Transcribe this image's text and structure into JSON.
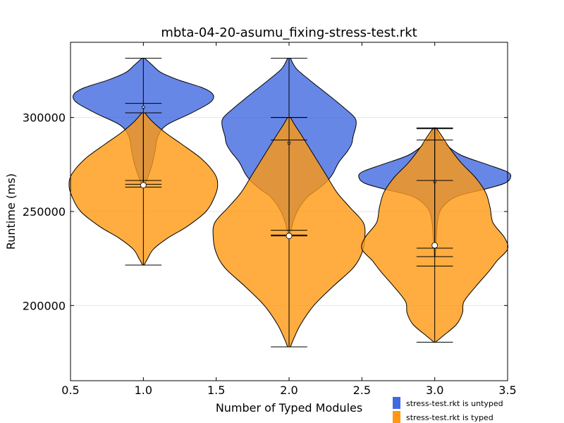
{
  "chart_data": {
    "type": "violin",
    "title": "mbta-04-20-asumu_fixing-stress-test.rkt",
    "xlabel": "Number of Typed Modules",
    "ylabel": "Runtime (ms)",
    "xlim": [
      0.5,
      3.5
    ],
    "ylim": [
      160000,
      340000
    ],
    "xticks": [
      0.5,
      1.0,
      1.5,
      2.0,
      2.5,
      3.0,
      3.5
    ],
    "xtick_labels": [
      "0.5",
      "1.0",
      "1.5",
      "2.0",
      "2.5",
      "3.0",
      "3.5"
    ],
    "yticks": [
      200000,
      250000,
      300000
    ],
    "ytick_labels": [
      "200000",
      "250000",
      "300000"
    ],
    "grid": "horizontal",
    "legend_position": "bottom-right",
    "series": [
      {
        "name": "stress-test.rkt is untyped",
        "color": "#4169e1",
        "violins": [
          {
            "x": 1.0,
            "min": 263000,
            "max": 331500,
            "mean": 305500,
            "ci": [
              302500,
              307500
            ],
            "profile": [
              [
                263000,
                0.005
              ],
              [
                268000,
                0.03
              ],
              [
                275000,
                0.06
              ],
              [
                282000,
                0.08
              ],
              [
                290000,
                0.1
              ],
              [
                296000,
                0.16
              ],
              [
                302000,
                0.32
              ],
              [
                307000,
                0.44
              ],
              [
                310000,
                0.48
              ],
              [
                313000,
                0.47
              ],
              [
                316000,
                0.4
              ],
              [
                320000,
                0.24
              ],
              [
                324000,
                0.12
              ],
              [
                328000,
                0.06
              ],
              [
                331500,
                0.01
              ]
            ]
          },
          {
            "x": 2.0,
            "min": 237000,
            "max": 331500,
            "mean": 286500,
            "ci": [
              288000,
              300000
            ],
            "profile": [
              [
                237000,
                0.005
              ],
              [
                245000,
                0.03
              ],
              [
                252000,
                0.07
              ],
              [
                258000,
                0.13
              ],
              [
                262000,
                0.2
              ],
              [
                266000,
                0.26
              ],
              [
                270000,
                0.3
              ],
              [
                276000,
                0.34
              ],
              [
                282000,
                0.4
              ],
              [
                286000,
                0.43
              ],
              [
                290000,
                0.44
              ],
              [
                296000,
                0.46
              ],
              [
                300000,
                0.45
              ],
              [
                305000,
                0.38
              ],
              [
                312000,
                0.27
              ],
              [
                320000,
                0.14
              ],
              [
                326000,
                0.05
              ],
              [
                331500,
                0.01
              ]
            ]
          },
          {
            "x": 3.0,
            "min": 226000,
            "max": 294000,
            "mean": 266000,
            "ci": [
              266500,
              288000
            ],
            "profile": [
              [
                226000,
                0.005
              ],
              [
                235000,
                0.01
              ],
              [
                245000,
                0.02
              ],
              [
                252000,
                0.05
              ],
              [
                258000,
                0.15
              ],
              [
                262000,
                0.35
              ],
              [
                265000,
                0.48
              ],
              [
                268000,
                0.52
              ],
              [
                271000,
                0.5
              ],
              [
                275000,
                0.36
              ],
              [
                280000,
                0.18
              ],
              [
                286000,
                0.07
              ],
              [
                290000,
                0.03
              ],
              [
                294000,
                0.01
              ]
            ]
          }
        ]
      },
      {
        "name": "stress-test.rkt is typed",
        "color": "#ff9912",
        "violins": [
          {
            "x": 1.0,
            "min": 221500,
            "max": 302500,
            "mean": 264000,
            "ci": [
              264500,
              266500
            ],
            "profile": [
              [
                221500,
                0.005
              ],
              [
                225000,
                0.03
              ],
              [
                230000,
                0.07
              ],
              [
                236000,
                0.17
              ],
              [
                242000,
                0.3
              ],
              [
                250000,
                0.43
              ],
              [
                258000,
                0.49
              ],
              [
                264000,
                0.51
              ],
              [
                270000,
                0.49
              ],
              [
                278000,
                0.4
              ],
              [
                286000,
                0.26
              ],
              [
                292000,
                0.15
              ],
              [
                298000,
                0.06
              ],
              [
                302500,
                0.01
              ]
            ]
          },
          {
            "x": 2.0,
            "min": 178000,
            "max": 300000,
            "mean": 237000,
            "ci": [
              237500,
              240000
            ],
            "profile": [
              [
                178000,
                0.01
              ],
              [
                182000,
                0.03
              ],
              [
                190000,
                0.08
              ],
              [
                200000,
                0.17
              ],
              [
                210000,
                0.3
              ],
              [
                220000,
                0.44
              ],
              [
                228000,
                0.5
              ],
              [
                236000,
                0.52
              ],
              [
                244000,
                0.51
              ],
              [
                252000,
                0.42
              ],
              [
                260000,
                0.33
              ],
              [
                270000,
                0.25
              ],
              [
                280000,
                0.17
              ],
              [
                290000,
                0.09
              ],
              [
                296000,
                0.04
              ],
              [
                300000,
                0.01
              ]
            ]
          },
          {
            "x": 3.0,
            "min": 180500,
            "max": 294500,
            "mean": 232000,
            "ci": [
              221000,
              230500
            ],
            "profile": [
              [
                180500,
                0.005
              ],
              [
                184000,
                0.06
              ],
              [
                190000,
                0.15
              ],
              [
                196000,
                0.19
              ],
              [
                202000,
                0.2
              ],
              [
                210000,
                0.28
              ],
              [
                218000,
                0.37
              ],
              [
                224000,
                0.43
              ],
              [
                230000,
                0.5
              ],
              [
                236000,
                0.48
              ],
              [
                244000,
                0.4
              ],
              [
                252000,
                0.38
              ],
              [
                260000,
                0.35
              ],
              [
                268000,
                0.28
              ],
              [
                276000,
                0.18
              ],
              [
                284000,
                0.1
              ],
              [
                290000,
                0.05
              ],
              [
                294500,
                0.01
              ]
            ]
          }
        ]
      }
    ]
  }
}
